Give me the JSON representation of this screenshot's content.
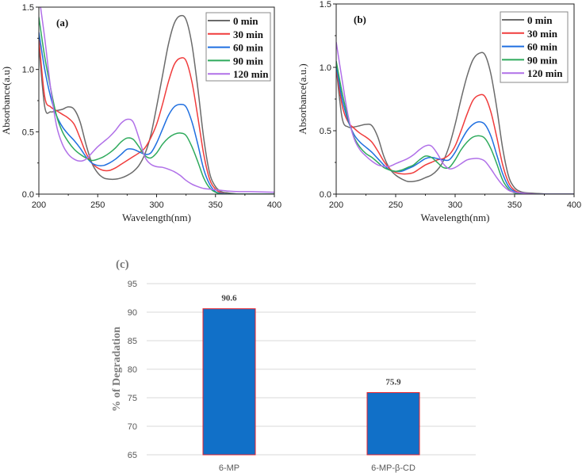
{
  "chart_data": [
    {
      "type": "line",
      "panel_label": "(a)",
      "xlabel": "Wavelength(nm)",
      "ylabel": "Absorbance(a.u)",
      "xlim": [
        200,
        400
      ],
      "ylim": [
        0,
        1.5
      ],
      "xticks": [
        200,
        250,
        300,
        350,
        400
      ],
      "yticks": [
        0.0,
        0.5,
        1.0,
        1.5
      ],
      "legend_position": "top-right",
      "x": [
        200,
        205,
        210,
        215,
        220,
        225,
        230,
        235,
        240,
        245,
        250,
        255,
        260,
        265,
        270,
        275,
        280,
        285,
        290,
        295,
        300,
        305,
        310,
        315,
        320,
        325,
        330,
        335,
        340,
        345,
        350,
        355,
        360,
        370,
        380,
        400
      ],
      "series": [
        {
          "name": "0 min",
          "color": "#6b6b6b",
          "values": [
            1.2,
            0.7,
            0.66,
            0.67,
            0.68,
            0.7,
            0.68,
            0.58,
            0.4,
            0.25,
            0.17,
            0.13,
            0.12,
            0.12,
            0.13,
            0.15,
            0.18,
            0.23,
            0.32,
            0.47,
            0.7,
            0.95,
            1.2,
            1.37,
            1.43,
            1.4,
            1.2,
            0.85,
            0.45,
            0.17,
            0.06,
            0.02,
            0.01,
            0,
            0,
            0
          ]
        },
        {
          "name": "30 min",
          "color": "#f03c3c",
          "values": [
            1.25,
            0.78,
            0.7,
            0.67,
            0.64,
            0.61,
            0.56,
            0.45,
            0.33,
            0.25,
            0.21,
            0.19,
            0.19,
            0.21,
            0.24,
            0.27,
            0.3,
            0.33,
            0.37,
            0.45,
            0.56,
            0.72,
            0.9,
            1.04,
            1.09,
            1.07,
            0.9,
            0.62,
            0.32,
            0.12,
            0.04,
            0.01,
            0,
            0,
            0,
            0
          ]
        },
        {
          "name": "60 min",
          "color": "#1f6fe0",
          "values": [
            1.3,
            1.0,
            0.78,
            0.63,
            0.54,
            0.48,
            0.43,
            0.37,
            0.3,
            0.25,
            0.23,
            0.23,
            0.25,
            0.28,
            0.32,
            0.36,
            0.36,
            0.34,
            0.32,
            0.33,
            0.41,
            0.52,
            0.63,
            0.7,
            0.72,
            0.7,
            0.58,
            0.4,
            0.2,
            0.08,
            0.02,
            0.005,
            0,
            0,
            0,
            0
          ]
        },
        {
          "name": "90 min",
          "color": "#2eaa5c",
          "values": [
            1.42,
            1.1,
            0.85,
            0.63,
            0.5,
            0.42,
            0.36,
            0.32,
            0.29,
            0.27,
            0.28,
            0.3,
            0.33,
            0.37,
            0.42,
            0.45,
            0.44,
            0.38,
            0.31,
            0.29,
            0.33,
            0.4,
            0.45,
            0.48,
            0.49,
            0.47,
            0.38,
            0.26,
            0.13,
            0.05,
            0.015,
            0,
            0,
            0,
            0,
            0
          ]
        },
        {
          "name": "120 min",
          "color": "#b070e8",
          "values": [
            1.6,
            1.25,
            0.85,
            0.55,
            0.4,
            0.32,
            0.28,
            0.265,
            0.28,
            0.33,
            0.38,
            0.42,
            0.46,
            0.51,
            0.57,
            0.6,
            0.58,
            0.45,
            0.3,
            0.24,
            0.22,
            0.215,
            0.2,
            0.18,
            0.15,
            0.11,
            0.08,
            0.06,
            0.045,
            0.04,
            0.035,
            0.03,
            0.025,
            0.02,
            0.02,
            0.015
          ]
        }
      ]
    },
    {
      "type": "line",
      "panel_label": "(b)",
      "xlabel": "Wavelength(nm)",
      "ylabel": "Absorbance(a.u.)",
      "xlim": [
        200,
        400
      ],
      "ylim": [
        0,
        1.5
      ],
      "xticks": [
        200,
        250,
        300,
        350,
        400
      ],
      "yticks": [
        0.0,
        0.5,
        1.0,
        1.5
      ],
      "legend_position": "top-right",
      "x": [
        200,
        205,
        210,
        215,
        220,
        225,
        230,
        235,
        240,
        245,
        250,
        255,
        260,
        265,
        270,
        275,
        280,
        285,
        290,
        295,
        300,
        305,
        310,
        315,
        320,
        325,
        330,
        335,
        340,
        345,
        350,
        355,
        360,
        370,
        380,
        400
      ],
      "series": [
        {
          "name": "0 min",
          "color": "#6b6b6b",
          "values": [
            1.0,
            0.6,
            0.53,
            0.53,
            0.54,
            0.55,
            0.54,
            0.45,
            0.3,
            0.2,
            0.15,
            0.12,
            0.1,
            0.1,
            0.11,
            0.13,
            0.15,
            0.19,
            0.26,
            0.38,
            0.55,
            0.75,
            0.93,
            1.06,
            1.11,
            1.1,
            0.95,
            0.68,
            0.36,
            0.14,
            0.05,
            0.02,
            0.01,
            0.005,
            0,
            0
          ]
        },
        {
          "name": "30 min",
          "color": "#f03c3c",
          "values": [
            1.0,
            0.7,
            0.57,
            0.52,
            0.48,
            0.45,
            0.41,
            0.34,
            0.26,
            0.2,
            0.17,
            0.16,
            0.16,
            0.17,
            0.2,
            0.23,
            0.25,
            0.27,
            0.28,
            0.31,
            0.38,
            0.5,
            0.63,
            0.74,
            0.78,
            0.77,
            0.65,
            0.45,
            0.23,
            0.09,
            0.03,
            0.01,
            0,
            0,
            0,
            0
          ]
        },
        {
          "name": "60 min",
          "color": "#1f6fe0",
          "values": [
            1.02,
            0.75,
            0.58,
            0.47,
            0.41,
            0.37,
            0.33,
            0.28,
            0.23,
            0.19,
            0.18,
            0.18,
            0.2,
            0.22,
            0.25,
            0.28,
            0.29,
            0.28,
            0.27,
            0.27,
            0.33,
            0.42,
            0.5,
            0.55,
            0.57,
            0.55,
            0.46,
            0.31,
            0.16,
            0.06,
            0.02,
            0.005,
            0,
            0,
            0,
            0
          ]
        },
        {
          "name": "90 min",
          "color": "#2eaa5c",
          "values": [
            1.05,
            0.8,
            0.6,
            0.45,
            0.37,
            0.32,
            0.29,
            0.25,
            0.21,
            0.19,
            0.18,
            0.19,
            0.21,
            0.23,
            0.27,
            0.3,
            0.29,
            0.25,
            0.21,
            0.21,
            0.27,
            0.35,
            0.41,
            0.45,
            0.46,
            0.44,
            0.36,
            0.24,
            0.11,
            0.04,
            0.01,
            0,
            0,
            0,
            0,
            0
          ]
        },
        {
          "name": "120 min",
          "color": "#b070e8",
          "values": [
            1.2,
            0.9,
            0.62,
            0.44,
            0.35,
            0.3,
            0.26,
            0.23,
            0.22,
            0.22,
            0.24,
            0.26,
            0.28,
            0.31,
            0.35,
            0.38,
            0.38,
            0.32,
            0.24,
            0.2,
            0.21,
            0.24,
            0.27,
            0.28,
            0.28,
            0.26,
            0.2,
            0.13,
            0.07,
            0.03,
            0.015,
            0.01,
            0.005,
            0,
            0,
            0
          ]
        }
      ]
    },
    {
      "type": "bar",
      "panel_label": "(c)",
      "categories": [
        "6-MP",
        "6-MP-β-CD"
      ],
      "values": [
        90.6,
        75.9
      ],
      "data_labels": [
        "90.6",
        "75.9"
      ],
      "xlabel": "",
      "ylabel": "% of Degradation",
      "ylim": [
        65,
        95
      ],
      "yticks": [
        65,
        70,
        75,
        80,
        85,
        90,
        95
      ],
      "grid": true,
      "bar_color": "#1170c8",
      "bar_edge_color": "#e8202a"
    }
  ]
}
